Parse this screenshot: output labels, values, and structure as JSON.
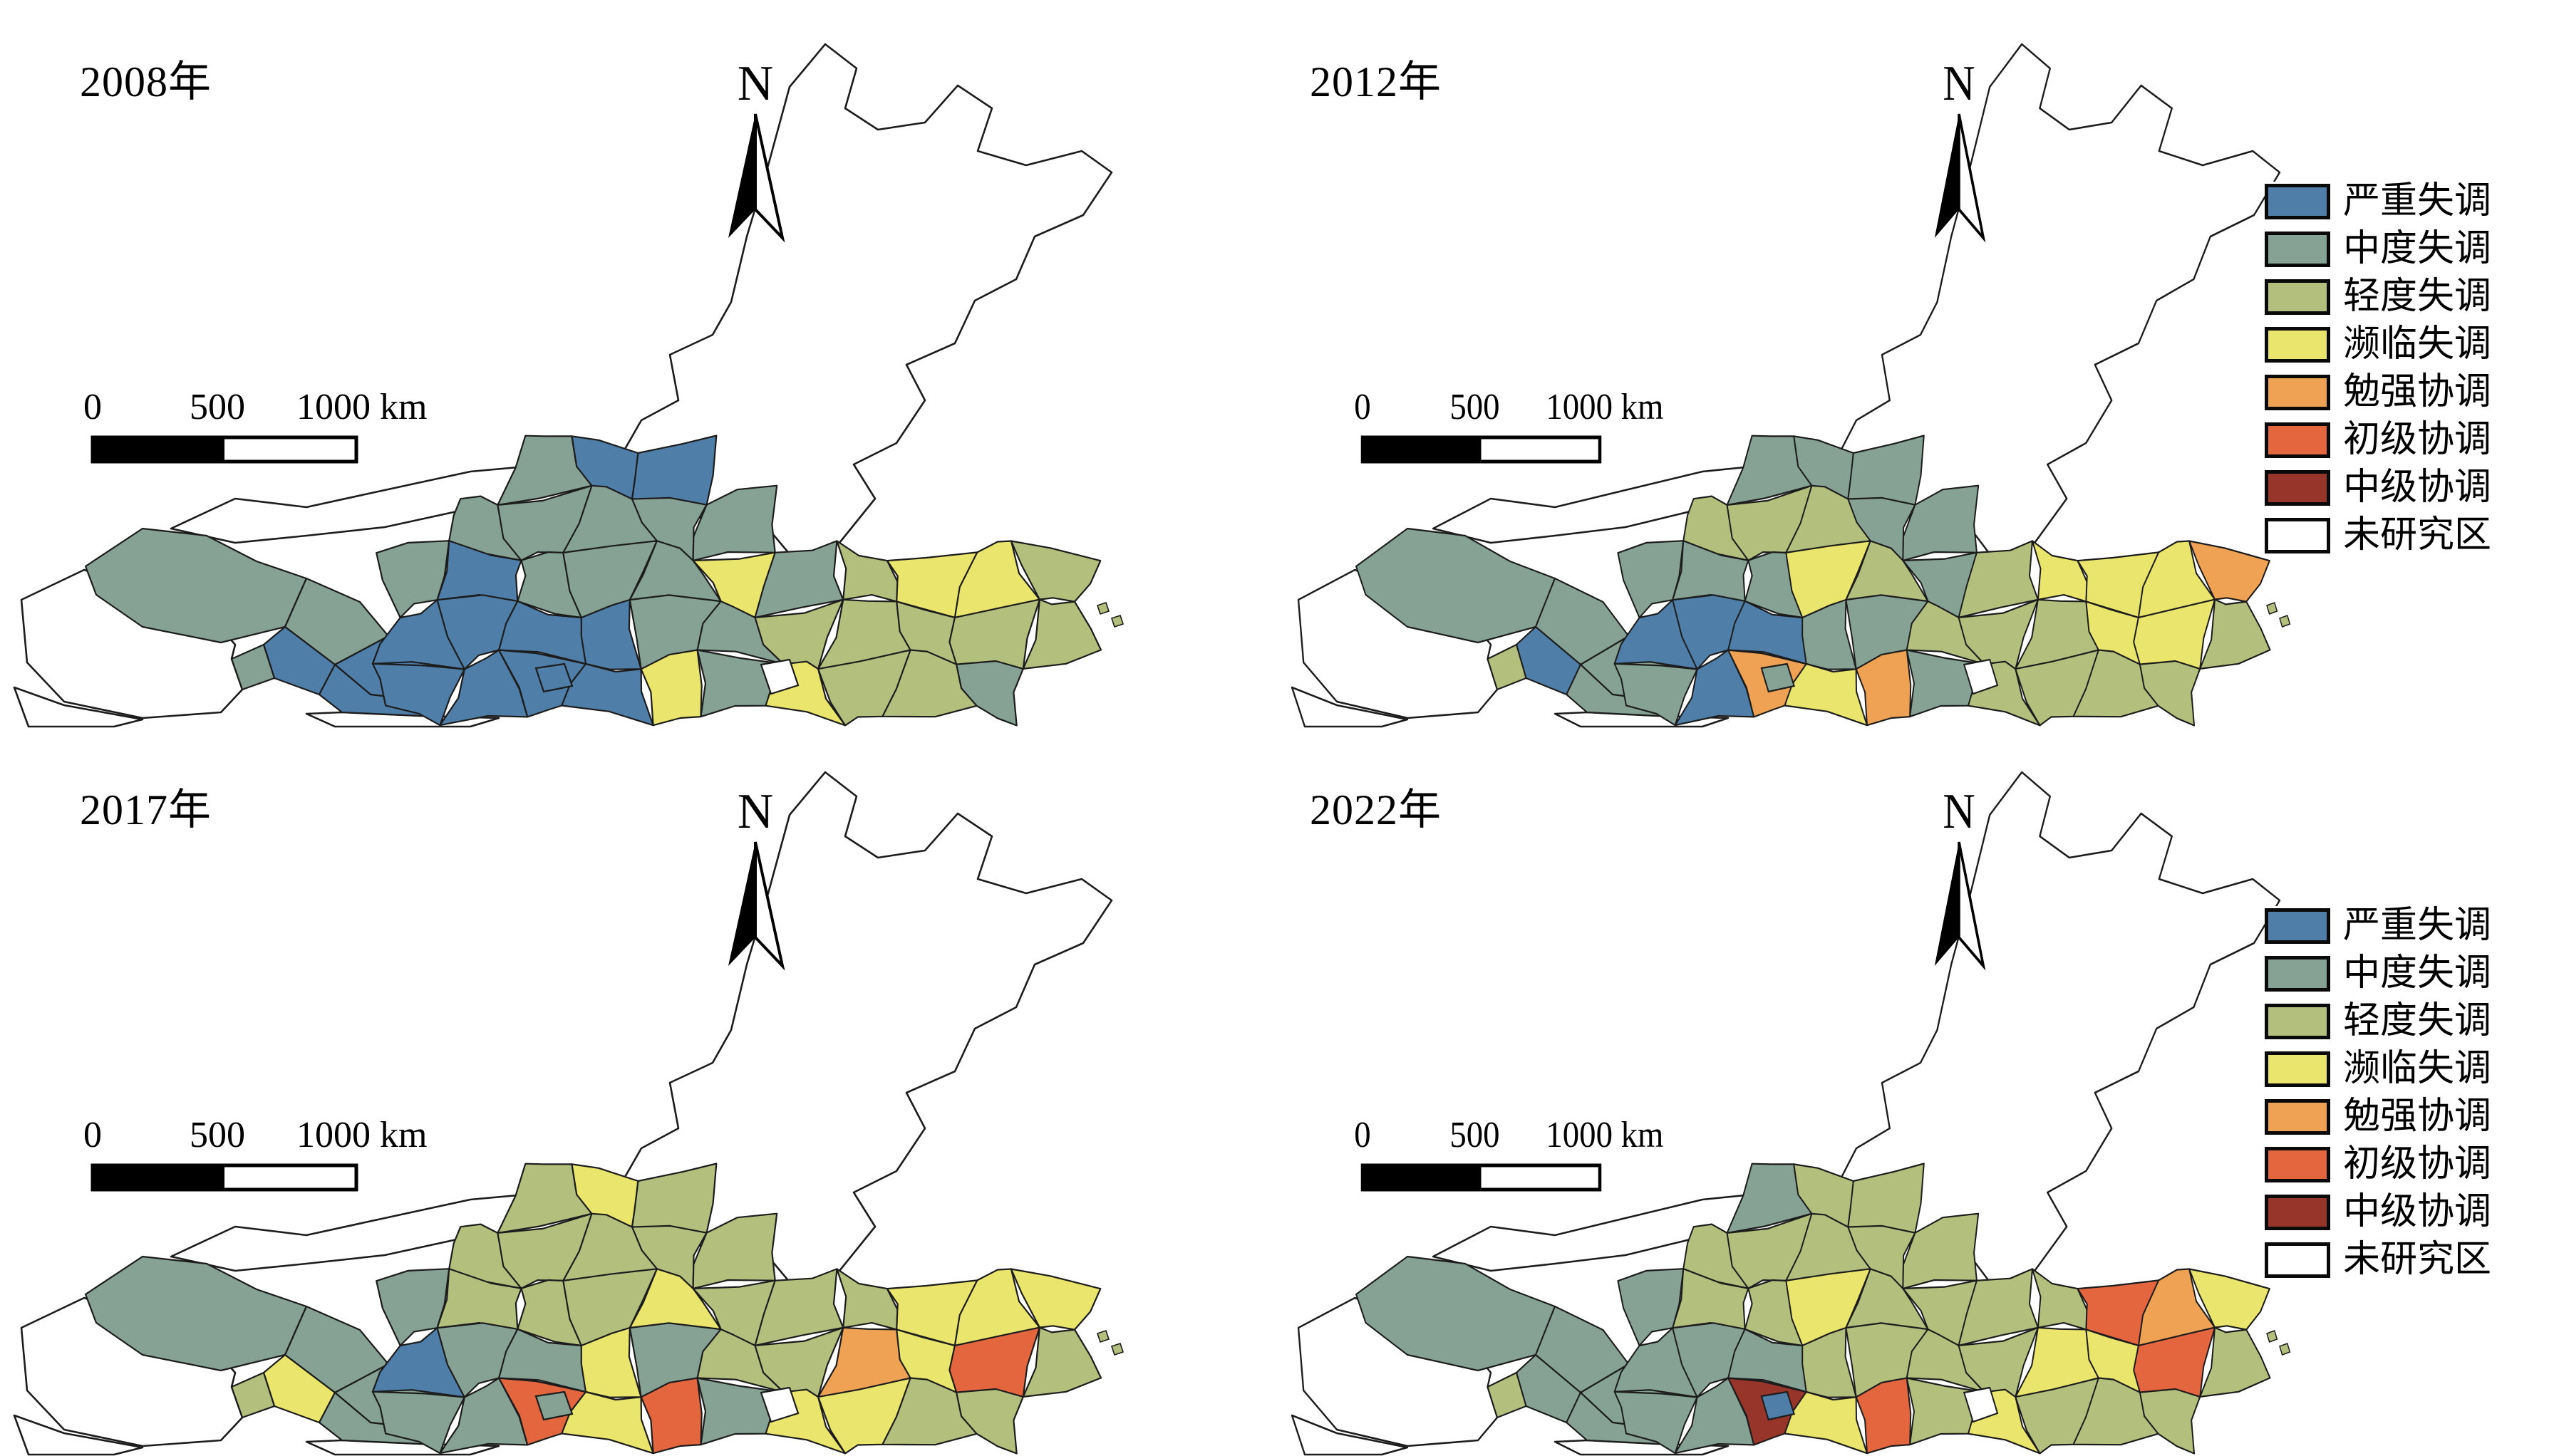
{
  "figure": {
    "kind": "choropleth-map-small-multiples",
    "description_visible_years": [
      "2008年",
      "2012年",
      "2017年",
      "2022年"
    ]
  },
  "panels": [
    {
      "id": "p2008",
      "year_label": "2008年"
    },
    {
      "id": "p2012",
      "year_label": "2012年"
    },
    {
      "id": "p2017",
      "year_label": "2017年"
    },
    {
      "id": "p2022",
      "year_label": "2022年"
    }
  ],
  "north_arrow_label": "N",
  "scale_bar": {
    "labels": [
      "0",
      "500",
      "1000 km"
    ]
  },
  "legend": {
    "items": [
      {
        "level": 1,
        "label": "严重失调",
        "color": "#4f7fa8"
      },
      {
        "level": 2,
        "label": "中度失调",
        "color": "#86a295"
      },
      {
        "level": 3,
        "label": "轻度失调",
        "color": "#b3bf7d"
      },
      {
        "level": 4,
        "label": "濒临失调",
        "color": "#e9e56d"
      },
      {
        "level": 5,
        "label": "勉强协调",
        "color": "#f0a254"
      },
      {
        "level": 6,
        "label": "初级协调",
        "color": "#e4663f"
      },
      {
        "level": 7,
        "label": "中级协调",
        "color": "#98352a"
      },
      {
        "level": 8,
        "label": "未研究区",
        "color": "#ffffff"
      }
    ]
  },
  "map_data": {
    "type": "choropleth",
    "years": [
      "2008",
      "2012",
      "2017",
      "2022"
    ],
    "level_meaning": "index into legend.items (1-8)",
    "cells": [
      {
        "id": "haixi",
        "levels": [
          2,
          2,
          2,
          2
        ]
      },
      {
        "id": "hexi-mid",
        "levels": [
          2,
          2,
          2,
          2
        ]
      },
      {
        "id": "hexi-east",
        "levels": [
          1,
          2,
          2,
          2
        ]
      },
      {
        "id": "qinghai-sw",
        "levels": [
          1,
          1,
          4,
          2
        ]
      },
      {
        "id": "xining",
        "levels": [
          1,
          2,
          2,
          2
        ]
      },
      {
        "id": "sw-small",
        "levels": [
          2,
          3,
          3,
          3
        ]
      },
      {
        "id": "center-small",
        "levels": [
          1,
          2,
          2,
          1
        ]
      },
      {
        "id": "r0c4",
        "levels": [
          2,
          2,
          3,
          2
        ]
      },
      {
        "id": "r0c5",
        "levels": [
          1,
          2,
          4,
          3
        ]
      },
      {
        "id": "r0c6",
        "levels": [
          1,
          2,
          3,
          3
        ]
      },
      {
        "id": "r1c3",
        "levels": [
          2,
          3,
          3,
          3
        ]
      },
      {
        "id": "r1c4",
        "levels": [
          2,
          3,
          3,
          3
        ]
      },
      {
        "id": "r1c5",
        "levels": [
          2,
          3,
          3,
          3
        ]
      },
      {
        "id": "r1c6",
        "levels": [
          2,
          2,
          3,
          3
        ]
      },
      {
        "id": "r1c7",
        "levels": [
          2,
          2,
          3,
          3
        ]
      },
      {
        "id": "r2c2",
        "levels": [
          2,
          2,
          2,
          2
        ]
      },
      {
        "id": "r2c3",
        "levels": [
          1,
          2,
          3,
          3
        ]
      },
      {
        "id": "r2c4",
        "levels": [
          2,
          2,
          3,
          3
        ]
      },
      {
        "id": "r2c5",
        "levels": [
          2,
          4,
          3,
          4
        ]
      },
      {
        "id": "r2c6",
        "levels": [
          2,
          3,
          4,
          3
        ]
      },
      {
        "id": "r2c7",
        "levels": [
          4,
          2,
          3,
          3
        ]
      },
      {
        "id": "r2c8",
        "levels": [
          2,
          3,
          3,
          3
        ]
      },
      {
        "id": "r2c9",
        "levels": [
          3,
          4,
          3,
          3
        ]
      },
      {
        "id": "r2c10",
        "levels": [
          4,
          4,
          4,
          6
        ]
      },
      {
        "id": "r2c11",
        "levels": [
          4,
          4,
          4,
          5
        ]
      },
      {
        "id": "r2c12",
        "levels": [
          3,
          5,
          4,
          4
        ]
      },
      {
        "id": "r3c2",
        "levels": [
          1,
          1,
          1,
          2
        ]
      },
      {
        "id": "r3c3",
        "levels": [
          1,
          1,
          2,
          2
        ]
      },
      {
        "id": "r3c4",
        "levels": [
          1,
          1,
          2,
          2
        ]
      },
      {
        "id": "r3c5",
        "levels": [
          1,
          2,
          4,
          3
        ]
      },
      {
        "id": "r3c6",
        "levels": [
          2,
          2,
          2,
          3
        ]
      },
      {
        "id": "r3c7",
        "levels": [
          2,
          3,
          3,
          3
        ]
      },
      {
        "id": "r3c8",
        "levels": [
          3,
          3,
          3,
          3
        ]
      },
      {
        "id": "r3c9",
        "levels": [
          3,
          3,
          5,
          4
        ]
      },
      {
        "id": "r3c10",
        "levels": [
          3,
          4,
          4,
          4
        ]
      },
      {
        "id": "r3c11",
        "levels": [
          3,
          4,
          6,
          6
        ]
      },
      {
        "id": "r3c12",
        "levels": [
          3,
          3,
          3,
          3
        ]
      },
      {
        "id": "r4c2",
        "levels": [
          1,
          2,
          2,
          2
        ]
      },
      {
        "id": "r4c3",
        "levels": [
          1,
          1,
          2,
          2
        ]
      },
      {
        "id": "r4c4",
        "levels": [
          1,
          5,
          6,
          7
        ]
      },
      {
        "id": "r4c5",
        "levels": [
          1,
          4,
          4,
          4
        ]
      },
      {
        "id": "r4c6",
        "levels": [
          4,
          5,
          6,
          6
        ]
      },
      {
        "id": "r4c7",
        "levels": [
          2,
          2,
          2,
          3
        ]
      },
      {
        "id": "r4c8",
        "levels": [
          4,
          3,
          4,
          4
        ]
      },
      {
        "id": "r4c9",
        "levels": [
          3,
          3,
          4,
          3
        ]
      },
      {
        "id": "r4c10",
        "levels": [
          3,
          3,
          3,
          3
        ]
      },
      {
        "id": "r4c11",
        "levels": [
          2,
          3,
          3,
          3
        ]
      }
    ]
  }
}
